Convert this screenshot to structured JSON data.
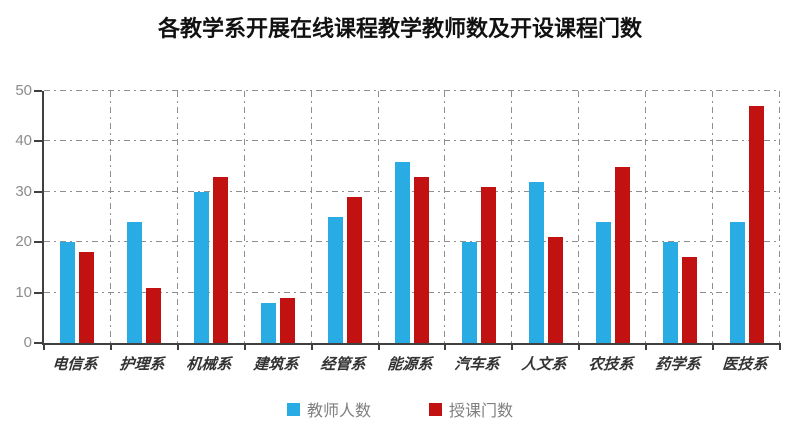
{
  "chart_data": {
    "type": "bar",
    "title": "各教学系开展在线课程教学教师数及开设课程门数",
    "categories": [
      "电信系",
      "护理系",
      "机械系",
      "建筑系",
      "经管系",
      "能源系",
      "汽车系",
      "人文系",
      "农技系",
      "药学系",
      "医技系"
    ],
    "series": [
      {
        "name": "教师人数",
        "color": "#29ACE4",
        "values": [
          20,
          24,
          30,
          8,
          25,
          36,
          20,
          32,
          24,
          20,
          24
        ]
      },
      {
        "name": "授课门数",
        "color": "#C21111",
        "values": [
          18,
          11,
          33,
          9,
          29,
          33,
          31,
          21,
          35,
          17,
          47
        ]
      }
    ],
    "xlabel": "",
    "ylabel": "",
    "ylim": [
      0,
      50
    ],
    "y_ticks": [
      0,
      10,
      20,
      30,
      40,
      50
    ],
    "grid": true,
    "gridline_style": "dash-dot",
    "legend_position": "bottom"
  },
  "colors": {
    "axis": "#404040",
    "gridline": "#8F8F8F",
    "y_tick_label": "#8C8C8C",
    "category_label": "#333333",
    "title": "#111111",
    "legend_label": "#7F7F7F",
    "background": "#FFFFFF"
  }
}
